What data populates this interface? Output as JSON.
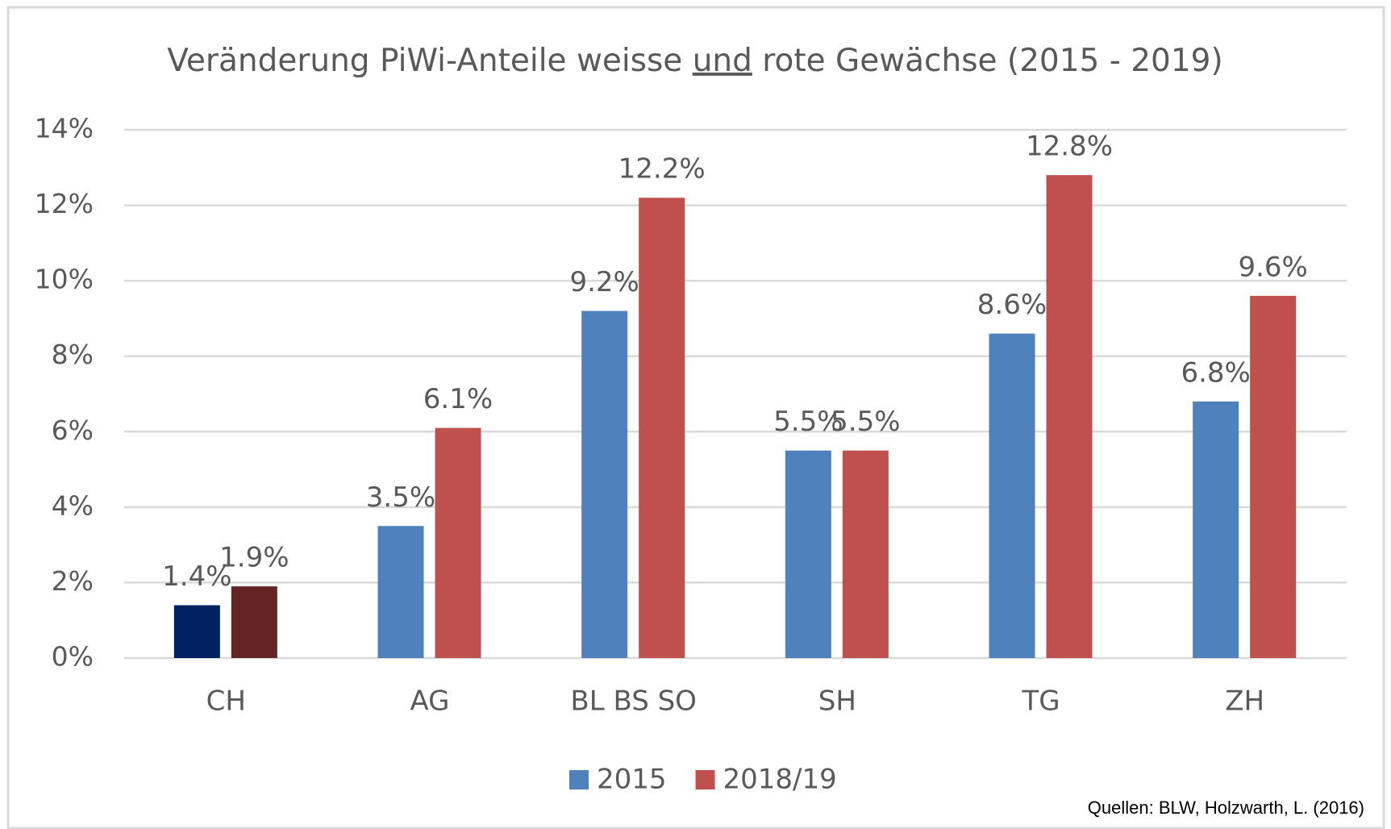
{
  "chart_data": {
    "type": "bar",
    "title": "Veränderung PiWi-Anteile weisse und rote Gewächse (2015 - 2019)",
    "title_segments": [
      {
        "text": "Veränderung PiWi-Anteile weisse "
      },
      {
        "text": "und",
        "underline": true
      },
      {
        "text": " rote Gewächse (2015 - 2019)"
      }
    ],
    "categories": [
      "CH",
      "AG",
      "BL BS SO",
      "SH",
      "TG",
      "ZH"
    ],
    "series": [
      {
        "name": "2015",
        "color": "#4f81bd",
        "colors": [
          "#002060",
          "#4f81bd",
          "#4f81bd",
          "#4f81bd",
          "#4f81bd",
          "#4f81bd"
        ],
        "values": [
          1.4,
          3.5,
          9.2,
          5.5,
          8.6,
          6.8
        ],
        "value_labels": [
          "1.4%",
          "3.5%",
          "9.2%",
          "5.5%",
          "8.6%",
          "6.8%"
        ]
      },
      {
        "name": "2018/19",
        "color": "#c0504d",
        "colors": [
          "#632523",
          "#c0504d",
          "#c0504d",
          "#c0504d",
          "#c0504d",
          "#c0504d"
        ],
        "values": [
          1.9,
          6.1,
          12.2,
          5.5,
          12.8,
          9.6
        ],
        "value_labels": [
          "1.9%",
          "6.1%",
          "12.2%",
          "5.5%",
          "12.8%",
          "9.6%"
        ]
      }
    ],
    "ylim": [
      0,
      14
    ],
    "yticks": [
      {
        "value": 0,
        "label": "0%"
      },
      {
        "value": 2,
        "label": "2%"
      },
      {
        "value": 4,
        "label": "4%"
      },
      {
        "value": 6,
        "label": "6%"
      },
      {
        "value": 8,
        "label": "8%"
      },
      {
        "value": 10,
        "label": "10%"
      },
      {
        "value": 12,
        "label": "12%"
      },
      {
        "value": 14,
        "label": "14%"
      }
    ],
    "grid": true,
    "legend": "bottom",
    "source": "Quellen: BLW, Holzwarth, L. (2016)"
  }
}
